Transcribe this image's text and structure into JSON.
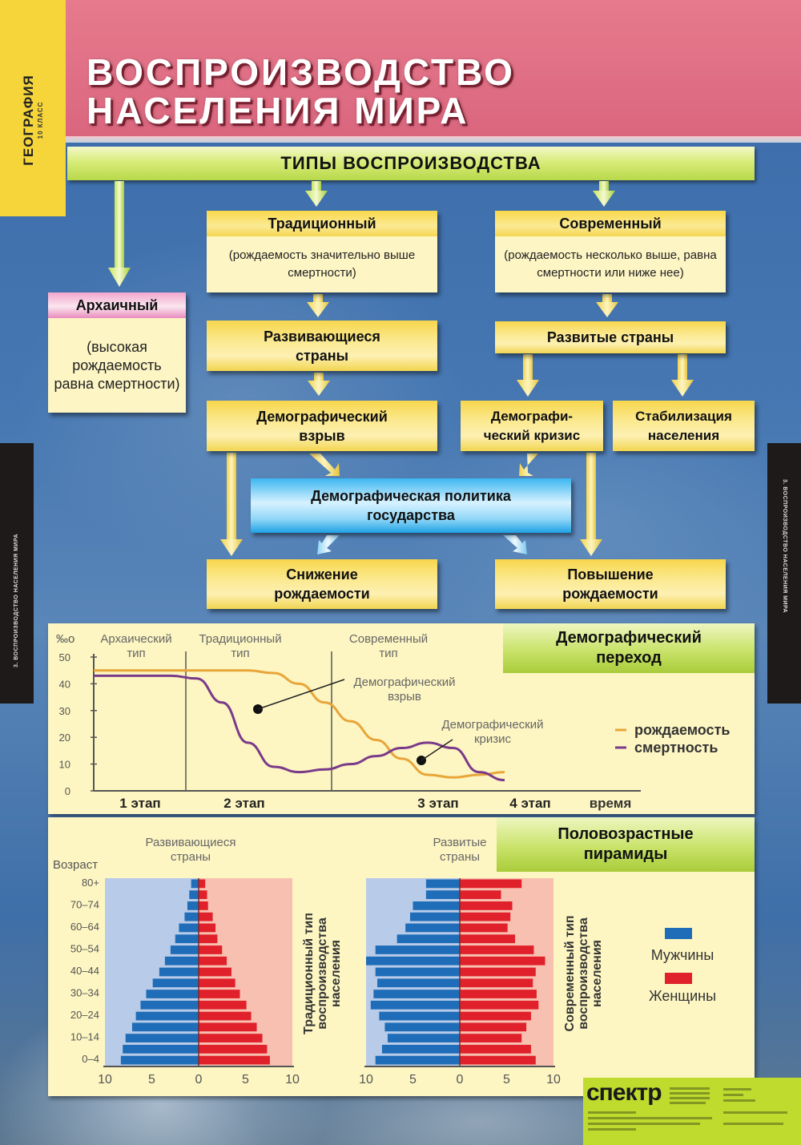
{
  "poster": {
    "subject": "ГЕОГРАФИЯ",
    "grade": "10 КЛАСС",
    "title_line1": "ВОСПРОИЗВОДСТВО",
    "title_line2": "НАСЕЛЕНИЯ МИРА",
    "side_strip_left": "3. ВОСПРОИЗВОДСТВО НАСЕЛЕНИЯ МИРА",
    "side_strip_right": "3. ВОСПРОИЗВОДСТВО НАСЕЛЕНИЯ МИРА",
    "publisher": "спектр"
  },
  "colors": {
    "header_pink": "#df6e84",
    "tab_yellow": "#f6d53a",
    "box_yellow": "#fbe98f",
    "policy_blue": "#3bb6f0",
    "panel_bg": "#fdf6c2",
    "title_green": "#c9e36a",
    "birth_rate": "#e8a53a",
    "death_rate": "#7a3a8a",
    "men": "#1f6db8",
    "women": "#e0202a",
    "men_bg": "#b8cbe8",
    "women_bg": "#f7c0b0"
  },
  "diagram": {
    "types_header": "ТИПЫ ВОСПРОИЗВОДСТВА",
    "archaic": {
      "title": "Архаичный",
      "desc": "(высокая рождаемость равна смертности)"
    },
    "traditional": {
      "title": "Традиционный",
      "desc": "(рождаемость значительно выше смертности)"
    },
    "modern": {
      "title": "Современный",
      "desc": "(рождаемость несколько выше, равна смертности или ниже нее)"
    },
    "developing": "Развивающиеся страны",
    "developed": "Развитые страны",
    "demo_boom": "Демографический взрыв",
    "demo_crisis": "Демографи-ческий кризис",
    "stabilization": "Стабилизация населения",
    "policy": "Демографическая политика государства",
    "decrease_birth": "Снижение рождаемости",
    "increase_birth": "Повышение рождаемости"
  },
  "chart_data": [
    {
      "type": "line",
      "title": "Демографический переход",
      "ylabel": "‰",
      "xlabel": "время",
      "ylim": [
        0,
        50
      ],
      "yticks": [
        0,
        10,
        20,
        30,
        40,
        50
      ],
      "stages": [
        "1 этап",
        "2 этап",
        "3 этап",
        "4 этап"
      ],
      "type_labels": [
        "Архаический тип",
        "Традиционный тип",
        "Современный тип"
      ],
      "annotations": [
        "Демографический взрыв",
        "Демографический кризис"
      ],
      "legend": [
        "рождаемость",
        "смертность"
      ],
      "x": [
        0,
        1,
        2,
        3,
        4,
        5,
        6,
        7,
        8,
        9,
        10,
        11,
        12,
        13,
        14,
        15,
        16
      ],
      "series": [
        {
          "name": "рождаемость",
          "values": [
            45,
            45,
            45,
            45,
            45,
            45,
            45,
            44,
            40,
            33,
            26,
            19,
            12,
            6,
            5,
            6,
            7
          ]
        },
        {
          "name": "смертность",
          "values": [
            43,
            43,
            43,
            43,
            42,
            33,
            18,
            9,
            7,
            8,
            10,
            13,
            16,
            18,
            16,
            7,
            4
          ]
        }
      ]
    },
    {
      "type": "bar",
      "title": "Половозрастные пирамиды — Развивающиеся страны (Традиционный тип воспроизводства населения)",
      "ylabel": "Возраст",
      "xticks": [
        10,
        5,
        0,
        5,
        10
      ],
      "age_labels": [
        "80+",
        "70–74",
        "60–64",
        "50–54",
        "40–44",
        "30–34",
        "20–24",
        "10–14",
        "0–4"
      ],
      "categories": [
        "80+",
        "75–79",
        "70–74",
        "65–69",
        "60–64",
        "55–59",
        "50–54",
        "45–49",
        "40–44",
        "35–39",
        "30–34",
        "25–29",
        "20–24",
        "15–19",
        "10–14",
        "5–9",
        "0–4"
      ],
      "series": [
        {
          "name": "Мужчины",
          "values": [
            0.8,
            1.0,
            1.2,
            1.5,
            2.1,
            2.5,
            3.0,
            3.6,
            4.2,
            4.9,
            5.6,
            6.2,
            6.7,
            7.1,
            7.8,
            8.1,
            8.3
          ]
        },
        {
          "name": "Женщины",
          "values": [
            0.7,
            0.9,
            1.0,
            1.5,
            1.8,
            2.0,
            2.5,
            3.0,
            3.5,
            3.9,
            4.4,
            5.1,
            5.6,
            6.2,
            6.8,
            7.3,
            7.6
          ]
        }
      ]
    },
    {
      "type": "bar",
      "title": "Половозрастные пирамиды — Развитые страны (Современный тип воспроизводства населения)",
      "xticks": [
        10,
        5,
        0,
        5,
        10
      ],
      "categories": [
        "80+",
        "75–79",
        "70–74",
        "65–69",
        "60–64",
        "55–59",
        "50–54",
        "45–49",
        "40–44",
        "35–39",
        "30–34",
        "25–29",
        "20–24",
        "15–19",
        "10–14",
        "5–9",
        "0–4"
      ],
      "series": [
        {
          "name": "Мужчины",
          "values": [
            3.6,
            3.6,
            5.0,
            5.3,
            5.8,
            6.7,
            9.0,
            10.0,
            9.0,
            8.8,
            9.2,
            9.5,
            8.6,
            8.0,
            7.7,
            8.3,
            9.0
          ]
        },
        {
          "name": "Женщины",
          "values": [
            6.6,
            4.4,
            5.6,
            5.4,
            5.1,
            5.9,
            7.9,
            9.1,
            8.1,
            7.8,
            8.2,
            8.4,
            7.6,
            7.1,
            6.6,
            7.6,
            8.1
          ]
        }
      ]
    }
  ],
  "pyramids": {
    "section_title": "Половозрастные пирамиды",
    "age_axis_label": "Возраст",
    "developing_label": "Развивающиеся страны",
    "developed_label": "Развитые страны",
    "developing_side": "Традиционный тип воспроизводства населения",
    "developed_side": "Современный тип воспроизводства населения",
    "legend_men": "Мужчины",
    "legend_women": "Женщины"
  }
}
